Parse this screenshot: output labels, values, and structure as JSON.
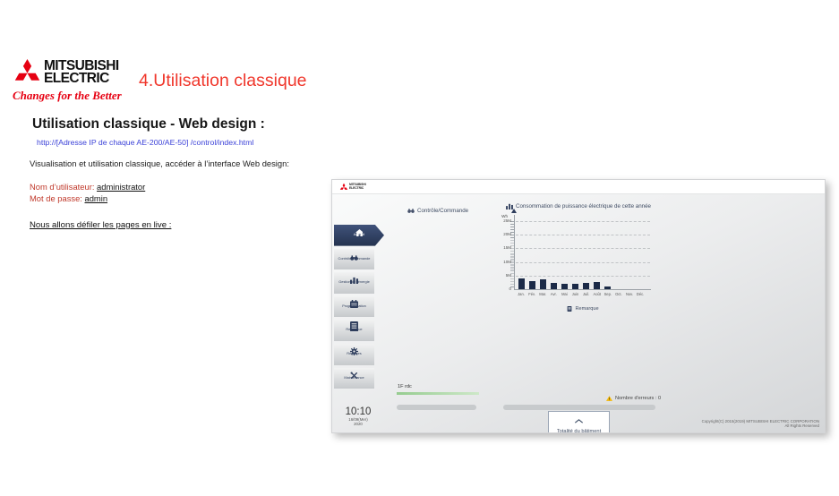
{
  "slide": {
    "logo": {
      "line1": "MITSUBISHI",
      "line2": "ELECTRIC",
      "tagline": "Changes for the Better"
    },
    "heading": "4.Utilisation classique",
    "subheading": "Utilisation classique - Web design :",
    "url": "http://[Adresse IP de chaque AE-200/AE-50] /control/index.html",
    "intro": "Visualisation et utilisation classique, accéder à l’interface Web design:",
    "username_label": "Nom d’utilisateur:",
    "username_value": "administrator",
    "password_label": "Mot de passe:",
    "password_value": "admin",
    "live_line": "Nous allons défiler les pages en live :"
  },
  "app": {
    "header_brand": {
      "line1": "MITSUBISHI",
      "line2": "ELECTRIC"
    },
    "sidebar": {
      "items": [
        {
          "label": "Accueil",
          "icon": "home-icon",
          "active": true
        },
        {
          "label": "Contrôle/Commande",
          "icon": "binoculars-icon",
          "active": false
        },
        {
          "label": "Gestion de l'énergie",
          "icon": "energy-chart-icon",
          "active": false
        },
        {
          "label": "Programmation",
          "icon": "calendar-icon",
          "active": false
        },
        {
          "label": "Remarque",
          "icon": "note-icon",
          "active": false
        },
        {
          "label": "Réglages",
          "icon": "gear-icon",
          "active": false
        },
        {
          "label": "Maintenance",
          "icon": "tools-icon",
          "active": false
        }
      ]
    },
    "panel_header": "Contrôle/Commande",
    "remark_label": "Remarque",
    "floor_tab": "1F rdc",
    "errors_label": "Nombre d'erreurs : 0",
    "clock": {
      "time": "10:10",
      "date": "16/09(Mer)",
      "year": "2020"
    },
    "building_button": "Totalité du bâtiment",
    "copyright_line1": "Copyright(C) 2015(2019) MITSUBISHI ELECTRIC CORPORATION",
    "copyright_line2": "All Rights Reserved"
  },
  "chart_data": {
    "type": "bar",
    "title": "Consommation de puissance électrique de cette année",
    "ylabel": "Wh",
    "categories": [
      "Jan.",
      "Fév.",
      "Mar.",
      "Avr.",
      "Mai",
      "Juin",
      "Juil.",
      "Août",
      "Sep.",
      "Oct.",
      "Nov.",
      "Déc."
    ],
    "values_millions_wh": [
      3.9,
      2.8,
      3.5,
      2.2,
      2.1,
      2.0,
      2.3,
      2.5,
      1.1,
      0,
      0,
      0
    ],
    "ylim_millions_wh": [
      0,
      25
    ],
    "ytick_labels": [
      "25M",
      "20M",
      "15M",
      "10M",
      "5M",
      "0"
    ],
    "grid": "dashed horizontal",
    "legend_position": "none",
    "bar_color": "#1b2a47"
  },
  "colors": {
    "brand_red": "#e60012",
    "heading_red": "#f0372c",
    "label_red": "#c0392b",
    "link_blue": "#3b41d8",
    "navy": "#2e3d5c",
    "warning_yellow": "#f5b80c",
    "green_tab": "#96cc90"
  }
}
